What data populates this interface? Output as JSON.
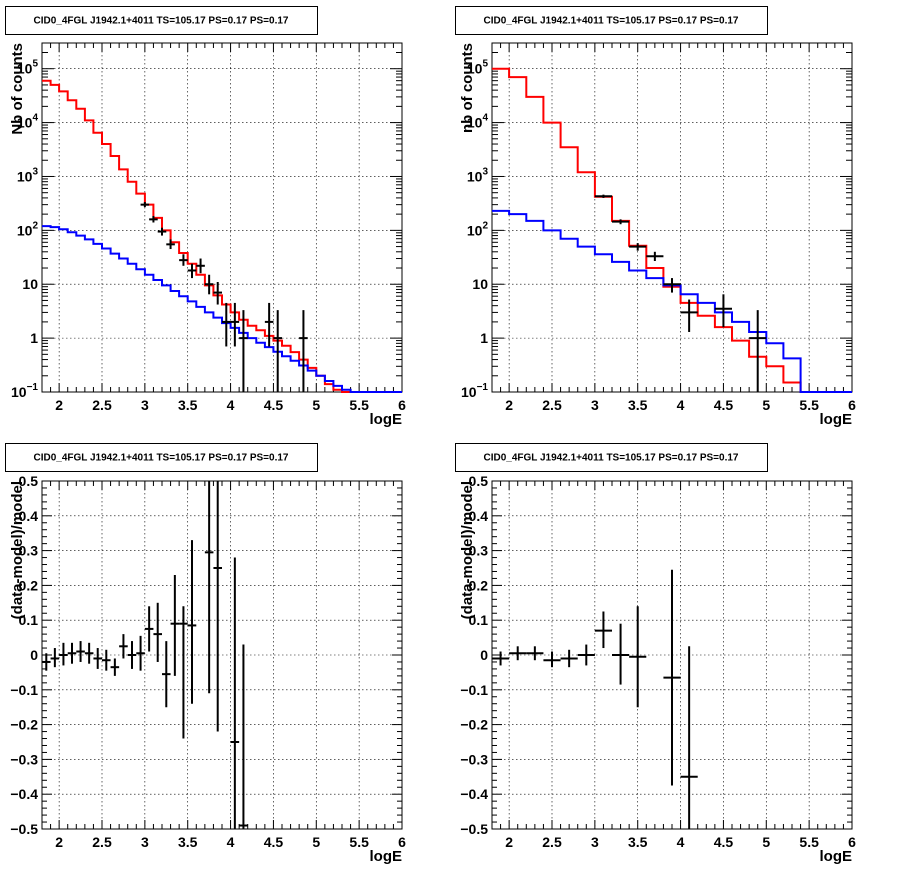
{
  "colors": {
    "data": "#000000",
    "total_model": "#ff0000",
    "source_model": "#0000ff",
    "grid": "#000000"
  },
  "chart_data": [
    {
      "panel": "top-left",
      "type": "line",
      "title": "CID0_4FGL J1942.1+4011 TS=105.17 PS=0.17 PS=0.17",
      "xlabel": "logE",
      "ylabel": "Nb of counts",
      "xlim": [
        1.8,
        6
      ],
      "ylim": [
        0.1,
        300000
      ],
      "log_y": true,
      "grid": true,
      "xticks": [
        "2",
        "2.5",
        "3",
        "3.5",
        "4",
        "4.5",
        "5",
        "5.5",
        "6"
      ],
      "yticks": [
        {
          "value": 0.1,
          "label": "10",
          "exp": "−1"
        },
        {
          "value": 1,
          "label": "1",
          "exp": ""
        },
        {
          "value": 10,
          "label": "10",
          "exp": ""
        },
        {
          "value": 100,
          "label": "10",
          "exp": "2"
        },
        {
          "value": 1000,
          "label": "10",
          "exp": "3"
        },
        {
          "value": 10000,
          "label": "10",
          "exp": "4"
        },
        {
          "value": 100000,
          "label": "10",
          "exp": "5"
        }
      ],
      "series": [
        {
          "style": "step",
          "color": "#ff0000",
          "width": 0.1,
          "x": [
            1.8,
            1.9,
            2.0,
            2.1,
            2.2,
            2.3,
            2.4,
            2.5,
            2.6,
            2.7,
            2.8,
            2.9,
            3.0,
            3.1,
            3.2,
            3.3,
            3.4,
            3.5,
            3.6,
            3.7,
            3.8,
            3.9,
            4.0,
            4.1,
            4.2,
            4.3,
            4.4,
            4.5,
            4.6,
            4.7,
            4.8,
            4.9,
            5.0,
            5.1,
            5.2,
            5.3,
            5.4,
            5.5,
            5.6,
            5.7,
            5.8,
            5.9
          ],
          "values": [
            60000,
            50000,
            38000,
            26000,
            18000,
            11000,
            6500,
            4000,
            2400,
            1350,
            800,
            480,
            300,
            170,
            100,
            60,
            38,
            24,
            15,
            9.5,
            6.2,
            4.2,
            3.0,
            2.2,
            1.7,
            1.4,
            1.1,
            0.9,
            0.72,
            0.55,
            0.4,
            0.28,
            0.2,
            0.14,
            0.11,
            0.1,
            0.1,
            0.1,
            0.1,
            0.1,
            0.1,
            0.1
          ]
        },
        {
          "style": "step",
          "color": "#0000ff",
          "width": 0.1,
          "x": [
            1.8,
            1.9,
            2.0,
            2.1,
            2.2,
            2.3,
            2.4,
            2.5,
            2.6,
            2.7,
            2.8,
            2.9,
            3.0,
            3.1,
            3.2,
            3.3,
            3.4,
            3.5,
            3.6,
            3.7,
            3.8,
            3.9,
            4.0,
            4.1,
            4.2,
            4.3,
            4.4,
            4.5,
            4.6,
            4.7,
            4.8,
            4.9,
            5.0,
            5.1,
            5.2,
            5.3,
            5.4,
            5.5,
            5.6,
            5.7,
            5.8,
            5.9
          ],
          "values": [
            120,
            115,
            105,
            92,
            80,
            68,
            56,
            46,
            37,
            30,
            24,
            19,
            15,
            12,
            9.5,
            7.5,
            6,
            4.8,
            3.8,
            3.0,
            2.4,
            1.9,
            1.55,
            1.25,
            1.0,
            0.82,
            0.68,
            0.56,
            0.46,
            0.38,
            0.31,
            0.25,
            0.2,
            0.16,
            0.13,
            0.11,
            0.1,
            0.1,
            0.1,
            0.1,
            0.1,
            0.1
          ]
        }
      ],
      "points": [
        {
          "x": 3.0,
          "y": 300,
          "xerr": 0.05,
          "ylo": 270,
          "yhi": 335
        },
        {
          "x": 3.1,
          "y": 160,
          "xerr": 0.05,
          "ylo": 140,
          "yhi": 185
        },
        {
          "x": 3.2,
          "y": 95,
          "xerr": 0.05,
          "ylo": 80,
          "yhi": 112
        },
        {
          "x": 3.3,
          "y": 55,
          "xerr": 0.05,
          "ylo": 45,
          "yhi": 68
        },
        {
          "x": 3.45,
          "y": 28,
          "xerr": 0.05,
          "ylo": 22,
          "yhi": 36
        },
        {
          "x": 3.55,
          "y": 18,
          "xerr": 0.05,
          "ylo": 13,
          "yhi": 24
        },
        {
          "x": 3.65,
          "y": 22,
          "xerr": 0.05,
          "ylo": 16,
          "yhi": 30
        },
        {
          "x": 3.75,
          "y": 10,
          "xerr": 0.05,
          "ylo": 6.5,
          "yhi": 15
        },
        {
          "x": 3.85,
          "y": 7,
          "xerr": 0.05,
          "ylo": 4.2,
          "yhi": 11
        },
        {
          "x": 3.95,
          "y": 2,
          "xerr": 0.05,
          "ylo": 0.7,
          "yhi": 4.5
        },
        {
          "x": 4.05,
          "y": 2,
          "xerr": 0.05,
          "ylo": 0.7,
          "yhi": 4.5
        },
        {
          "x": 4.15,
          "y": 1,
          "xerr": 0.05,
          "ylo": 0.1,
          "yhi": 3.3
        },
        {
          "x": 4.45,
          "y": 2,
          "xerr": 0.05,
          "ylo": 0.7,
          "yhi": 4.5
        },
        {
          "x": 4.55,
          "y": 1,
          "xerr": 0.05,
          "ylo": 0.1,
          "yhi": 3.3
        },
        {
          "x": 4.85,
          "y": 1,
          "xerr": 0.05,
          "ylo": 0.1,
          "yhi": 3.3
        }
      ]
    },
    {
      "panel": "top-right",
      "type": "line",
      "title": "CID0_4FGL J1942.1+4011 TS=105.17 PS=0.17 PS=0.17",
      "xlabel": "logE",
      "ylabel": "nb of counts",
      "xlim": [
        1.8,
        6
      ],
      "ylim": [
        0.1,
        300000
      ],
      "log_y": true,
      "grid": true,
      "xticks": [
        "2",
        "2.5",
        "3",
        "3.5",
        "4",
        "4.5",
        "5",
        "5.5",
        "6"
      ],
      "yticks": [
        {
          "value": 0.1,
          "label": "10",
          "exp": "−1"
        },
        {
          "value": 1,
          "label": "1",
          "exp": ""
        },
        {
          "value": 10,
          "label": "10",
          "exp": ""
        },
        {
          "value": 100,
          "label": "10",
          "exp": "2"
        },
        {
          "value": 1000,
          "label": "10",
          "exp": "3"
        },
        {
          "value": 10000,
          "label": "10",
          "exp": "4"
        },
        {
          "value": 100000,
          "label": "10",
          "exp": "5"
        }
      ],
      "series": [
        {
          "style": "step",
          "color": "#ff0000",
          "width": 0.2,
          "x": [
            1.8,
            2.0,
            2.2,
            2.4,
            2.6,
            2.8,
            3.0,
            3.2,
            3.4,
            3.6,
            3.8,
            4.0,
            4.2,
            4.4,
            4.6,
            4.8,
            5.0,
            5.2,
            5.4,
            5.6,
            5.8
          ],
          "values": [
            100000,
            70000,
            30000,
            10000,
            3500,
            1200,
            420,
            150,
            52,
            20,
            9,
            4.5,
            2.6,
            1.6,
            0.9,
            0.45,
            0.3,
            0.15,
            0.1,
            0.1,
            0.1
          ]
        },
        {
          "style": "step",
          "color": "#0000ff",
          "width": 0.2,
          "x": [
            1.8,
            2.0,
            2.2,
            2.4,
            2.6,
            2.8,
            3.0,
            3.2,
            3.4,
            3.6,
            3.8,
            4.0,
            4.2,
            4.4,
            4.6,
            4.8,
            5.0,
            5.2,
            5.4,
            5.6,
            5.8
          ],
          "values": [
            230,
            200,
            150,
            100,
            70,
            50,
            36,
            26,
            18,
            13,
            9.5,
            6.5,
            4.5,
            3.0,
            2.0,
            1.3,
            0.8,
            0.42,
            0.1,
            0.1,
            0.1
          ]
        }
      ],
      "points": [
        {
          "x": 3.1,
          "y": 430,
          "xerr": 0.1,
          "ylo": 400,
          "yhi": 460
        },
        {
          "x": 3.3,
          "y": 145,
          "xerr": 0.1,
          "ylo": 130,
          "yhi": 160
        },
        {
          "x": 3.5,
          "y": 50,
          "xerr": 0.1,
          "ylo": 42,
          "yhi": 58
        },
        {
          "x": 3.7,
          "y": 33,
          "xerr": 0.1,
          "ylo": 27,
          "yhi": 40
        },
        {
          "x": 3.9,
          "y": 10,
          "xerr": 0.1,
          "ylo": 7,
          "yhi": 13
        },
        {
          "x": 4.1,
          "y": 3,
          "xerr": 0.1,
          "ylo": 1.3,
          "yhi": 5.2
        },
        {
          "x": 4.5,
          "y": 3.5,
          "xerr": 0.1,
          "ylo": 1.6,
          "yhi": 6.5
        },
        {
          "x": 4.9,
          "y": 1,
          "xerr": 0.1,
          "ylo": 0.1,
          "yhi": 3.3
        }
      ]
    },
    {
      "panel": "bottom-left",
      "type": "scatter",
      "title": "CID0_4FGL J1942.1+4011 TS=105.17 PS=0.17 PS=0.17",
      "xlabel": "logE",
      "ylabel": "(data-model)/model",
      "xlim": [
        1.8,
        6
      ],
      "ylim": [
        -0.5,
        0.5
      ],
      "log_y": false,
      "grid": true,
      "xticks": [
        "2",
        "2.5",
        "3",
        "3.5",
        "4",
        "4.5",
        "5",
        "5.5",
        "6"
      ],
      "yticks": [
        {
          "value": 0.5,
          "label": "0.5"
        },
        {
          "value": 0.4,
          "label": "0.4"
        },
        {
          "value": 0.3,
          "label": "0.3"
        },
        {
          "value": 0.2,
          "label": "0.2"
        },
        {
          "value": 0.1,
          "label": "0.1"
        },
        {
          "value": 0,
          "label": "0"
        },
        {
          "value": -0.1,
          "label": "−0.1"
        },
        {
          "value": -0.2,
          "label": "−0.2"
        },
        {
          "value": -0.3,
          "label": "−0.3"
        },
        {
          "value": -0.4,
          "label": "−0.4"
        },
        {
          "value": -0.5,
          "label": "−0.5"
        }
      ],
      "series": [],
      "points": [
        {
          "x": 1.85,
          "y": -0.02,
          "xerr": 0.05,
          "ylo": -0.045,
          "yhi": 0.005
        },
        {
          "x": 1.95,
          "y": -0.01,
          "xerr": 0.05,
          "ylo": -0.035,
          "yhi": 0.02
        },
        {
          "x": 2.05,
          "y": 0.0,
          "xerr": 0.05,
          "ylo": -0.03,
          "yhi": 0.035
        },
        {
          "x": 2.15,
          "y": 0.005,
          "xerr": 0.05,
          "ylo": -0.025,
          "yhi": 0.035
        },
        {
          "x": 2.25,
          "y": 0.01,
          "xerr": 0.05,
          "ylo": -0.02,
          "yhi": 0.04
        },
        {
          "x": 2.35,
          "y": 0.005,
          "xerr": 0.05,
          "ylo": -0.025,
          "yhi": 0.035
        },
        {
          "x": 2.45,
          "y": -0.01,
          "xerr": 0.05,
          "ylo": -0.04,
          "yhi": 0.02
        },
        {
          "x": 2.55,
          "y": -0.015,
          "xerr": 0.05,
          "ylo": -0.045,
          "yhi": 0.015
        },
        {
          "x": 2.65,
          "y": -0.035,
          "xerr": 0.05,
          "ylo": -0.06,
          "yhi": -0.01
        },
        {
          "x": 2.75,
          "y": 0.025,
          "xerr": 0.05,
          "ylo": -0.01,
          "yhi": 0.06
        },
        {
          "x": 2.85,
          "y": 0.0,
          "xerr": 0.05,
          "ylo": -0.04,
          "yhi": 0.04
        },
        {
          "x": 2.95,
          "y": 0.005,
          "xerr": 0.05,
          "ylo": -0.045,
          "yhi": 0.055
        },
        {
          "x": 3.05,
          "y": 0.075,
          "xerr": 0.05,
          "ylo": 0.01,
          "yhi": 0.14
        },
        {
          "x": 3.15,
          "y": 0.06,
          "xerr": 0.05,
          "ylo": -0.02,
          "yhi": 0.15
        },
        {
          "x": 3.25,
          "y": -0.055,
          "xerr": 0.05,
          "ylo": -0.15,
          "yhi": 0.04
        },
        {
          "x": 3.35,
          "y": 0.09,
          "xerr": 0.05,
          "ylo": -0.06,
          "yhi": 0.23
        },
        {
          "x": 3.45,
          "y": 0.09,
          "xerr": 0.05,
          "ylo": -0.24,
          "yhi": 0.14
        },
        {
          "x": 3.55,
          "y": 0.085,
          "xerr": 0.05,
          "ylo": -0.14,
          "yhi": 0.33
        },
        {
          "x": 3.75,
          "y": 0.295,
          "xerr": 0.05,
          "ylo": -0.11,
          "yhi": 0.5
        },
        {
          "x": 3.85,
          "y": 0.25,
          "xerr": 0.05,
          "ylo": -0.22,
          "yhi": 0.5
        },
        {
          "x": 4.05,
          "y": -0.25,
          "xerr": 0.05,
          "ylo": -0.5,
          "yhi": 0.28
        },
        {
          "x": 4.15,
          "y": -0.49,
          "xerr": 0.05,
          "ylo": -0.5,
          "yhi": 0.03
        }
      ]
    },
    {
      "panel": "bottom-right",
      "type": "scatter",
      "title": "CID0_4FGL J1942.1+4011 TS=105.17 PS=0.17 PS=0.17",
      "xlabel": "logE",
      "ylabel": "(data-model)/model",
      "xlim": [
        1.8,
        6
      ],
      "ylim": [
        -0.5,
        0.5
      ],
      "log_y": false,
      "grid": true,
      "xticks": [
        "2",
        "2.5",
        "3",
        "3.5",
        "4",
        "4.5",
        "5",
        "5.5",
        "6"
      ],
      "yticks": [
        {
          "value": 0.5,
          "label": "0.5"
        },
        {
          "value": 0.4,
          "label": "0.4"
        },
        {
          "value": 0.3,
          "label": "0.3"
        },
        {
          "value": 0.2,
          "label": "0.2"
        },
        {
          "value": 0.1,
          "label": "0.1"
        },
        {
          "value": 0,
          "label": "0"
        },
        {
          "value": -0.1,
          "label": "−0.1"
        },
        {
          "value": -0.2,
          "label": "−0.2"
        },
        {
          "value": -0.3,
          "label": "−0.3"
        },
        {
          "value": -0.4,
          "label": "−0.4"
        },
        {
          "value": -0.5,
          "label": "−0.5"
        }
      ],
      "series": [],
      "points": [
        {
          "x": 1.9,
          "y": -0.01,
          "xerr": 0.1,
          "ylo": -0.03,
          "yhi": 0.01
        },
        {
          "x": 2.1,
          "y": 0.005,
          "xerr": 0.1,
          "ylo": -0.015,
          "yhi": 0.025
        },
        {
          "x": 2.3,
          "y": 0.005,
          "xerr": 0.1,
          "ylo": -0.015,
          "yhi": 0.025
        },
        {
          "x": 2.5,
          "y": -0.015,
          "xerr": 0.1,
          "ylo": -0.035,
          "yhi": 0.01
        },
        {
          "x": 2.7,
          "y": -0.01,
          "xerr": 0.1,
          "ylo": -0.035,
          "yhi": 0.015
        },
        {
          "x": 2.9,
          "y": 0.0,
          "xerr": 0.1,
          "ylo": -0.03,
          "yhi": 0.03
        },
        {
          "x": 3.1,
          "y": 0.07,
          "xerr": 0.1,
          "ylo": 0.02,
          "yhi": 0.125
        },
        {
          "x": 3.3,
          "y": 0.0,
          "xerr": 0.1,
          "ylo": -0.085,
          "yhi": 0.09
        },
        {
          "x": 3.5,
          "y": -0.005,
          "xerr": 0.1,
          "ylo": -0.15,
          "yhi": 0.14
        },
        {
          "x": 3.9,
          "y": -0.065,
          "xerr": 0.1,
          "ylo": -0.375,
          "yhi": 0.245
        },
        {
          "x": 4.1,
          "y": -0.35,
          "xerr": 0.1,
          "ylo": -0.5,
          "yhi": 0.025
        }
      ]
    }
  ]
}
